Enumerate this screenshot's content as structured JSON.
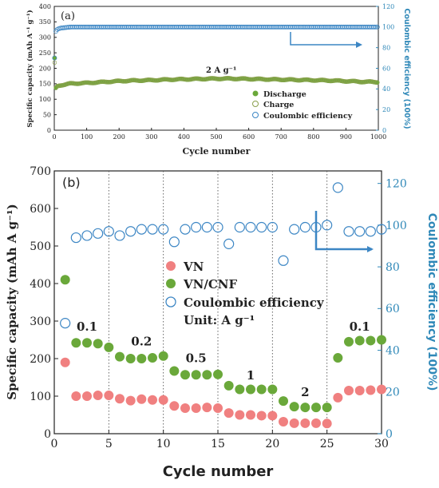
{
  "colors": {
    "discharge": "#6aa83a",
    "charge_edge": "#8aa04c",
    "coulombic": "#3c86c4",
    "vn": "#f08080",
    "vncnf": "#6aa83a",
    "right_axis": "#2f88b8",
    "arrow": "#3c86c4"
  },
  "chart_data": [
    {
      "type": "scatter",
      "panel_label": "(a)",
      "xlabel": "Cycle number",
      "ylabel": "Specific capacity (mAh A⁻¹ g⁻¹)",
      "y2label": "Coulombic efficiency (100%)",
      "xlim": [
        0,
        1000
      ],
      "ylim": [
        0,
        400
      ],
      "y2lim": [
        0,
        120
      ],
      "xticks": [
        0,
        100,
        200,
        300,
        400,
        500,
        600,
        700,
        800,
        900,
        1000
      ],
      "yticks": [
        0,
        50,
        100,
        150,
        200,
        250,
        300,
        350,
        400
      ],
      "y2ticks": [
        0,
        20,
        40,
        60,
        80,
        100,
        120
      ],
      "annotation": "2 A g⁻¹",
      "legend_position": "bottom-right",
      "legend": [
        "Discharge",
        "Charge",
        "Coulombic efficiency"
      ],
      "series": [
        {
          "name": "Discharge",
          "axis": "left",
          "marker": "filled-circle",
          "x": [
            1,
            2,
            5,
            10,
            20,
            50,
            100,
            150,
            200,
            250,
            300,
            350,
            400,
            450,
            500,
            550,
            600,
            650,
            700,
            750,
            800,
            850,
            900,
            950,
            1000
          ],
          "y": [
            232,
            120,
            135,
            142,
            145,
            150,
            152,
            155,
            158,
            160,
            161,
            163,
            164,
            165,
            166,
            166,
            165,
            164,
            163,
            162,
            161,
            160,
            158,
            156,
            155
          ]
        },
        {
          "name": "Charge",
          "axis": "left",
          "marker": "open-circle",
          "x": [
            1,
            2,
            5,
            10,
            20,
            50,
            100,
            150,
            200,
            250,
            300,
            350,
            400,
            450,
            500,
            550,
            600,
            650,
            700,
            750,
            800,
            850,
            900,
            950,
            1000
          ],
          "y": [
            215,
            118,
            134,
            141,
            144,
            149,
            151,
            154,
            157,
            159,
            160,
            162,
            163,
            164,
            165,
            165,
            164,
            163,
            162,
            161,
            160,
            159,
            157,
            155,
            154
          ]
        },
        {
          "name": "Coulombic efficiency",
          "axis": "right",
          "marker": "open-circle",
          "x": [
            1,
            2,
            5,
            10,
            20,
            50,
            100,
            150,
            200,
            250,
            300,
            350,
            400,
            450,
            500,
            550,
            600,
            650,
            700,
            750,
            800,
            850,
            900,
            950,
            1000
          ],
          "y": [
            70,
            92,
            96,
            98,
            99,
            100,
            100,
            100,
            100,
            100,
            100,
            100,
            100,
            100,
            100,
            100,
            100,
            100,
            100,
            100,
            100,
            100,
            100,
            100,
            100
          ]
        }
      ]
    },
    {
      "type": "scatter",
      "panel_label": "(b)",
      "xlabel": "Cycle number",
      "ylabel": "Specific capacity (mAh A g⁻¹)",
      "y2label": "Coulombic efficiency (100%)",
      "xlim": [
        0,
        30
      ],
      "ylim": [
        0,
        700
      ],
      "y2lim": [
        0,
        126
      ],
      "xticks": [
        0,
        5,
        10,
        15,
        20,
        25,
        30
      ],
      "yticks": [
        0,
        100,
        200,
        300,
        400,
        500,
        600,
        700
      ],
      "y2ticks": [
        0,
        20,
        40,
        60,
        80,
        100,
        120
      ],
      "vlines": [
        5,
        10,
        15,
        20,
        25
      ],
      "legend_position": "center-left",
      "legend": [
        "VN",
        "VN/CNF",
        "Coulombic efficiency"
      ],
      "unit_note": "Unit:  A g⁻¹",
      "rate_labels": [
        {
          "text": "0.1",
          "x": 3,
          "y": 275
        },
        {
          "text": "0.2",
          "x": 8,
          "y": 235
        },
        {
          "text": "0.5",
          "x": 13,
          "y": 190
        },
        {
          "text": "1",
          "x": 18,
          "y": 145
        },
        {
          "text": "2",
          "x": 23,
          "y": 100
        },
        {
          "text": "0.1",
          "x": 28,
          "y": 275
        }
      ],
      "series": [
        {
          "name": "VN",
          "axis": "left",
          "marker": "filled-circle",
          "x": [
            1,
            2,
            3,
            4,
            5,
            6,
            7,
            8,
            9,
            10,
            11,
            12,
            13,
            14,
            15,
            16,
            17,
            18,
            19,
            20,
            21,
            22,
            23,
            24,
            25,
            26,
            27,
            28,
            29,
            30
          ],
          "y": [
            190,
            100,
            100,
            102,
            102,
            93,
            88,
            92,
            90,
            90,
            74,
            68,
            68,
            70,
            68,
            55,
            50,
            50,
            48,
            48,
            32,
            28,
            28,
            28,
            27,
            96,
            115,
            115,
            116,
            118
          ]
        },
        {
          "name": "VN/CNF",
          "axis": "left",
          "marker": "filled-circle",
          "x": [
            1,
            2,
            3,
            4,
            5,
            6,
            7,
            8,
            9,
            10,
            11,
            12,
            13,
            14,
            15,
            16,
            17,
            18,
            19,
            20,
            21,
            22,
            23,
            24,
            25,
            26,
            27,
            28,
            29,
            30
          ],
          "y": [
            410,
            242,
            242,
            240,
            230,
            205,
            200,
            200,
            202,
            207,
            167,
            157,
            157,
            157,
            158,
            128,
            118,
            118,
            118,
            118,
            87,
            72,
            70,
            70,
            70,
            202,
            245,
            248,
            248,
            250
          ]
        },
        {
          "name": "Coulombic efficiency",
          "axis": "right",
          "marker": "open-circle",
          "x": [
            1,
            2,
            3,
            4,
            5,
            6,
            7,
            8,
            9,
            10,
            11,
            12,
            13,
            14,
            15,
            16,
            17,
            18,
            19,
            20,
            21,
            22,
            23,
            24,
            25,
            26,
            27,
            28,
            29,
            30
          ],
          "y": [
            53,
            94,
            95,
            96,
            97,
            95,
            97,
            98,
            98,
            98,
            92,
            98,
            99,
            99,
            99,
            91,
            99,
            99,
            99,
            99,
            83,
            98,
            99,
            99,
            100,
            118,
            97,
            97,
            97,
            98
          ]
        }
      ]
    }
  ]
}
